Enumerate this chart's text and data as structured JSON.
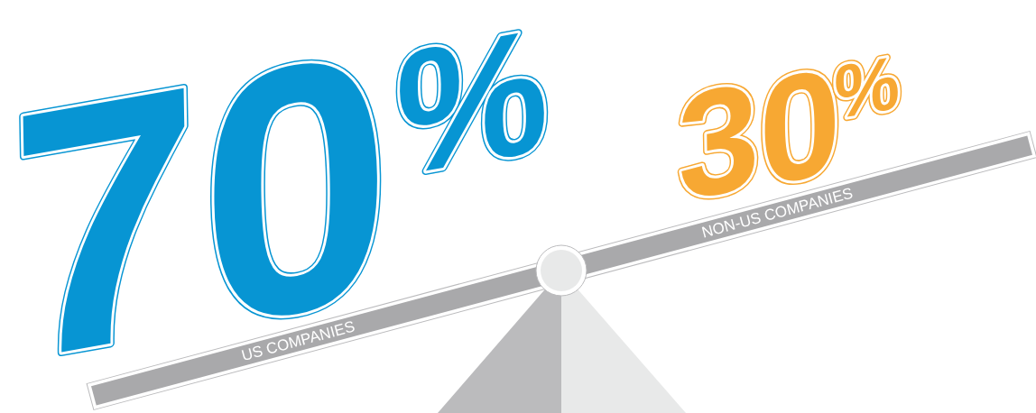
{
  "chart_data": {
    "type": "other",
    "categories": [
      "US COMPANIES",
      "NON-US COMPANIES"
    ],
    "values": [
      70,
      30
    ],
    "value_labels": [
      "70%",
      "30%"
    ],
    "colors": [
      "#0795d3",
      "#f7a833"
    ]
  }
}
